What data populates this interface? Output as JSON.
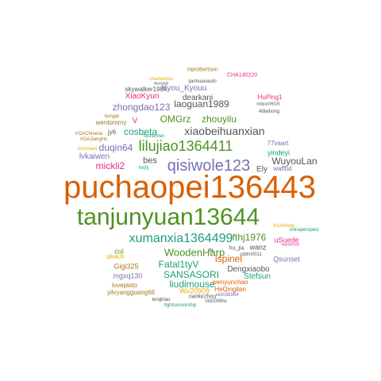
{
  "colors": {
    "orange": "#d95f02",
    "green": "#4d9221",
    "teal": "#1b9e77",
    "purple": "#7570b3",
    "magenta": "#e7298a",
    "gold": "#e6ab02",
    "brown": "#a6761d",
    "gray": "#555555"
  },
  "words": [
    {
      "text": "puchaopei136443",
      "color": "orange"
    },
    {
      "text": "tanjunyuan13644",
      "color": "green"
    },
    {
      "text": "qisiwole123",
      "color": "purple"
    },
    {
      "text": "lilujiao1364411",
      "color": "green"
    },
    {
      "text": "xumanxia1364499",
      "color": "teal"
    },
    {
      "text": "xiaobeihuanxian",
      "color": "gray"
    },
    {
      "text": "WoodenHarp",
      "color": "green"
    },
    {
      "text": "WuyouLan",
      "color": "gray"
    },
    {
      "text": "zhongdao123",
      "color": "purple"
    },
    {
      "text": "laoguan1989",
      "color": "gray"
    },
    {
      "text": "OMGrz",
      "color": "green"
    },
    {
      "text": "zhouyilu",
      "color": "green"
    },
    {
      "text": "cosbeta",
      "color": "teal"
    },
    {
      "text": "duqin64",
      "color": "purple"
    },
    {
      "text": "mickli2",
      "color": "magenta"
    },
    {
      "text": "fthj1976",
      "color": "green"
    },
    {
      "text": "ispinel",
      "color": "orange"
    },
    {
      "text": "Fatal1tyV",
      "color": "teal"
    },
    {
      "text": "SANSASORI",
      "color": "teal"
    },
    {
      "text": "liudimouse",
      "color": "teal"
    },
    {
      "text": "bes",
      "color": "gray"
    },
    {
      "text": "lvkaiwen",
      "color": "purple"
    },
    {
      "text": "Kyou_Kyouu",
      "color": "purple"
    },
    {
      "text": "dearkani",
      "color": "gray"
    },
    {
      "text": "XiaoKyun",
      "color": "magenta"
    },
    {
      "text": "Ely",
      "color": "gray"
    },
    {
      "text": "Dengxiaobo",
      "color": "gray"
    },
    {
      "text": "Stefsun",
      "color": "teal"
    },
    {
      "text": "V",
      "color": "magenta"
    },
    {
      "text": "wanz",
      "color": "gray"
    },
    {
      "text": "Wx20909",
      "color": "gold"
    },
    {
      "text": "Gigi325",
      "color": "brown"
    },
    {
      "text": "uSuede",
      "color": "magenta"
    },
    {
      "text": "Qsunset",
      "color": "purple"
    },
    {
      "text": "mgxq130",
      "color": "purple"
    },
    {
      "text": "cui",
      "color": "green"
    },
    {
      "text": "yindeyi",
      "color": "teal"
    },
    {
      "text": "skywalker1984",
      "color": "gray"
    },
    {
      "text": "wentommy",
      "color": "brown"
    },
    {
      "text": "HuPing1",
      "color": "magenta"
    },
    {
      "text": "77vaart",
      "color": "purple"
    },
    {
      "text": "waffbd",
      "color": "purple"
    },
    {
      "text": "loveplato",
      "color": "brown"
    },
    {
      "text": "wenyunchao",
      "color": "orange"
    },
    {
      "text": "yilvyangguang66",
      "color": "brown"
    },
    {
      "text": "HeQinglian",
      "color": "orange"
    },
    {
      "text": "qikalu9",
      "color": "gold"
    },
    {
      "text": "nankezhou",
      "color": "gray"
    },
    {
      "text": "jy6",
      "color": "gray"
    },
    {
      "text": "hu_jia",
      "color": "gray"
    },
    {
      "text": "CHA140220",
      "color": "magenta"
    },
    {
      "text": "mprobertson",
      "color": "brown"
    },
    {
      "text": "jianhuaxiaofo",
      "color": "gray"
    },
    {
      "text": "chunandzu",
      "color": "gold"
    },
    {
      "text": "milpias95035",
      "color": "gray"
    },
    {
      "text": "49laihong",
      "color": "gray"
    },
    {
      "text": "kungat",
      "color": "brown"
    },
    {
      "text": "VOAChinese",
      "color": "brown"
    },
    {
      "text": "VOAJiangHo",
      "color": "brown"
    },
    {
      "text": "momianli",
      "color": "gold"
    },
    {
      "text": "chinaperspect",
      "color": "teal"
    },
    {
      "text": "KeXinwen",
      "color": "gold"
    },
    {
      "text": "wanzeson",
      "color": "magenta"
    },
    {
      "text": "cddm0011",
      "color": "gray"
    },
    {
      "text": "xichoi8964",
      "color": "purple"
    },
    {
      "text": "cbl2008hx",
      "color": "gray"
    },
    {
      "text": "tengbiao",
      "color": "gray"
    },
    {
      "text": "fightcensorship",
      "color": "teal"
    },
    {
      "text": "N",
      "color": "gray"
    },
    {
      "text": "hnjhj",
      "color": "teal"
    },
    {
      "text": "fushunren",
      "color": "teal"
    },
    {
      "text": "wuzuoai",
      "color": "gray"
    }
  ]
}
